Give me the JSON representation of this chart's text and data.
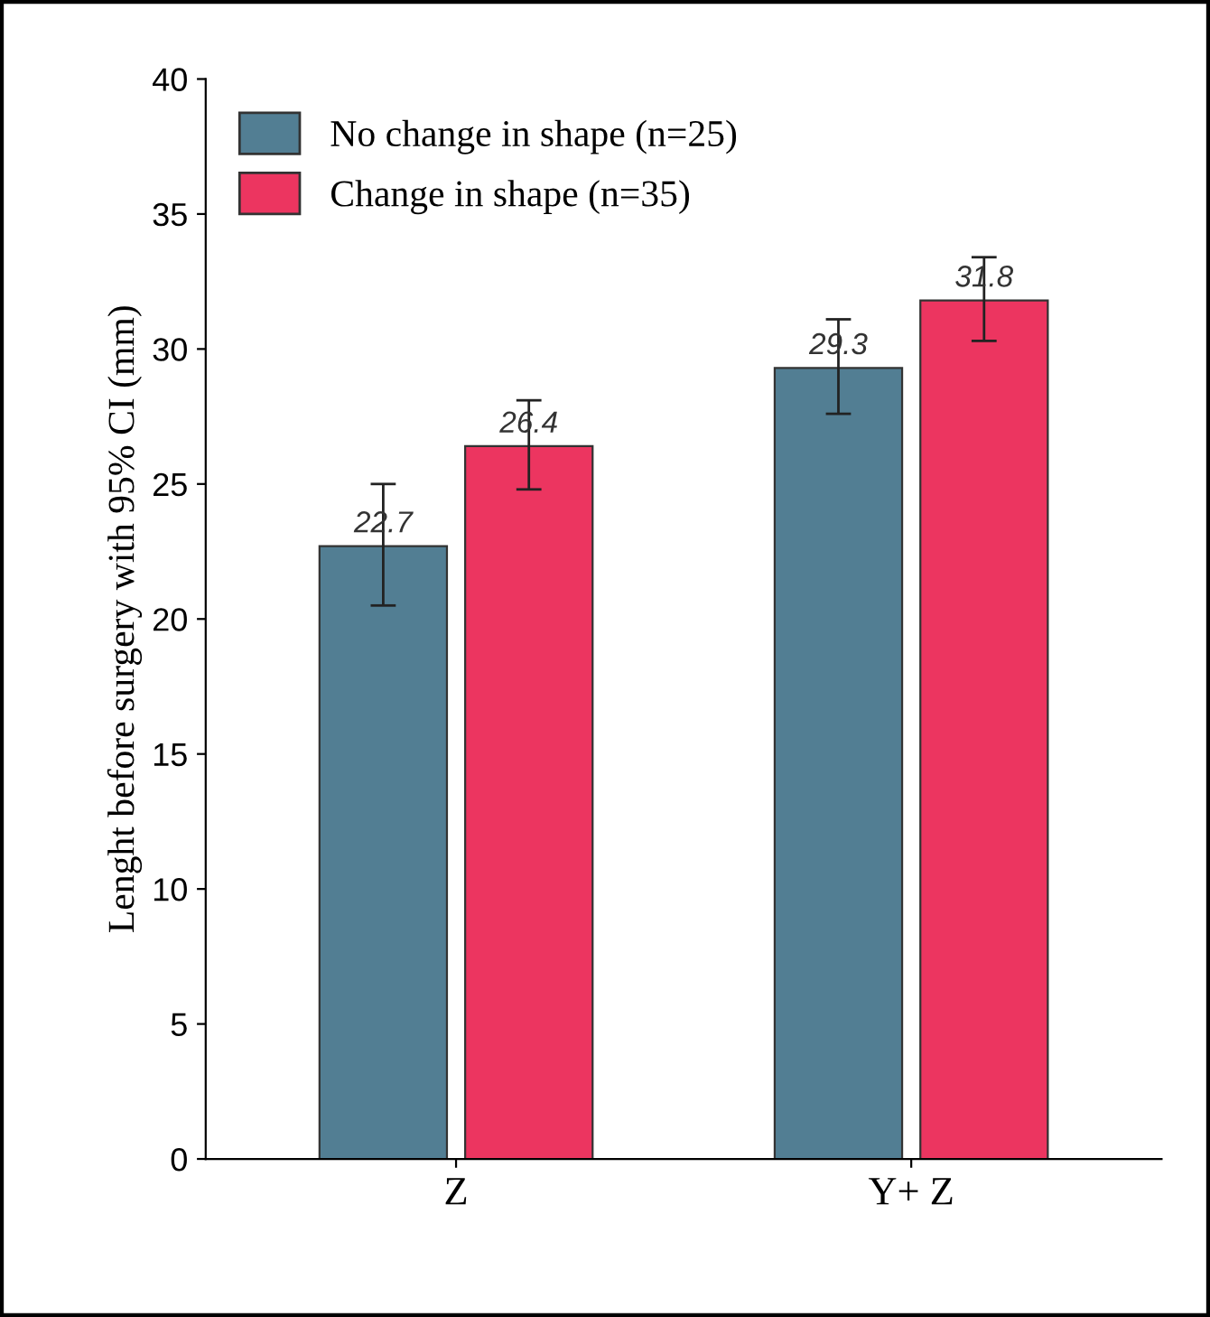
{
  "chart_data": {
    "type": "bar",
    "ylabel": "Lenght before surgery with 95% CI (mm)",
    "categories": [
      "Z",
      "Y+ Z"
    ],
    "series": [
      {
        "name": "No change in shape (n=25)",
        "color": "#527e93",
        "values": [
          22.7,
          29.3
        ],
        "errors": [
          [
            20.5,
            25.0
          ],
          [
            27.6,
            31.1
          ]
        ]
      },
      {
        "name": "Change in shape (n=35)",
        "color": "#ec3560",
        "values": [
          26.4,
          31.8
        ],
        "errors": [
          [
            24.8,
            28.1
          ],
          [
            30.3,
            33.4
          ]
        ]
      }
    ],
    "ylim": [
      0,
      40
    ],
    "yticks": [
      0,
      5,
      10,
      15,
      20,
      25,
      30,
      35,
      40
    ],
    "data_labels": true,
    "legend": "top left",
    "grid": false
  }
}
